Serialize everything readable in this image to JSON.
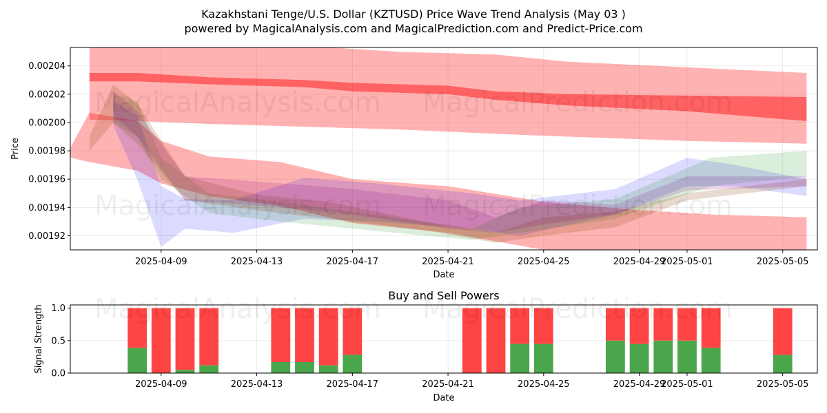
{
  "title_line1": "Kazakhstani Tenge/U.S. Dollar (KZTUSD) Price Wave Trend Analysis (May 03 )",
  "title_line2": "powered by MagicalAnalysis.com and MagicalPrediction.com and Predict-Price.com",
  "watermarks": [
    "MagicalAnalysis.com",
    "MagicalPrediction.com"
  ],
  "chart_data": [
    {
      "type": "area",
      "xlabel": "Date",
      "ylabel": "Price",
      "x_range": [
        "2025-04-05",
        "2025-05-06"
      ],
      "ylim": [
        0.00191,
        0.002053
      ],
      "x_ticks": [
        "2025-04-09",
        "2025-04-13",
        "2025-04-17",
        "2025-04-21",
        "2025-04-25",
        "2025-04-29",
        "2025-05-01",
        "2025-05-05"
      ],
      "y_ticks": [
        "0.00192",
        "0.00194",
        "0.00196",
        "0.00198",
        "0.00200",
        "0.00202",
        "0.00204"
      ],
      "grid": true,
      "colors": {
        "red": "#ff0000",
        "blue": "#0000ff",
        "green": "#008000",
        "brown": "#8b4513",
        "purple": "#800080"
      },
      "series": [
        {
          "color": "red",
          "kind": "band",
          "x": [
            "2025-04-06",
            "2025-04-08",
            "2025-04-11",
            "2025-04-15",
            "2025-04-19",
            "2025-04-23",
            "2025-04-26",
            "2025-05-01",
            "2025-05-06"
          ],
          "upper": [
            0.00206,
            0.002058,
            0.002055,
            0.002054,
            0.00205,
            0.002048,
            0.002043,
            0.002039,
            0.002035
          ],
          "lower": [
            0.002002,
            0.002001,
            0.001999,
            0.001997,
            0.001995,
            0.001992,
            0.00199,
            0.001987,
            0.001985
          ]
        },
        {
          "color": "red",
          "kind": "band",
          "x": [
            "2025-04-06",
            "2025-04-08",
            "2025-04-11",
            "2025-04-15",
            "2025-04-17",
            "2025-04-21",
            "2025-04-23",
            "2025-04-26",
            "2025-05-01",
            "2025-05-06"
          ],
          "upper": [
            0.002035,
            0.002035,
            0.002032,
            0.00203,
            0.002028,
            0.002026,
            0.002022,
            0.00202,
            0.002019,
            0.002018
          ],
          "lower": [
            0.002029,
            0.002029,
            0.002027,
            0.002025,
            0.002022,
            0.00202,
            0.002016,
            0.002012,
            0.002008,
            0.002001
          ]
        },
        {
          "color": "red",
          "kind": "band",
          "x": [
            "2025-04-05",
            "2025-04-06",
            "2025-04-08",
            "2025-04-09",
            "2025-04-11",
            "2025-04-14",
            "2025-04-17",
            "2025-04-21",
            "2025-04-25",
            "2025-04-29",
            "2025-05-02",
            "2025-05-06"
          ],
          "upper": [
            0.001976,
            0.002007,
            0.002001,
            0.001987,
            0.001976,
            0.001972,
            0.00196,
            0.001955,
            0.001944,
            0.001938,
            0.001935,
            0.001933
          ],
          "lower": [
            0.001976,
            0.001972,
            0.001966,
            0.001957,
            0.001948,
            0.001941,
            0.001929,
            0.001922,
            0.00191,
            0.001904,
            0.001902,
            0.0019
          ]
        },
        {
          "color": "blue",
          "kind": "band",
          "x": [
            "2025-04-07",
            "2025-04-08",
            "2025-04-09",
            "2025-04-10",
            "2025-04-12",
            "2025-04-15",
            "2025-04-18",
            "2025-04-22",
            "2025-04-24",
            "2025-04-28",
            "2025-05-01",
            "2025-05-03",
            "2025-05-06"
          ],
          "upper": [
            0.002015,
            0.002005,
            0.001955,
            0.001946,
            0.001945,
            0.001961,
            0.001957,
            0.00195,
            0.001945,
            0.001953,
            0.001975,
            0.00197,
            0.00196
          ],
          "lower": [
            0.001998,
            0.00196,
            0.001912,
            0.001925,
            0.001922,
            0.001932,
            0.00193,
            0.001925,
            0.00192,
            0.001935,
            0.001955,
            0.001955,
            0.001948
          ]
        },
        {
          "color": "green",
          "kind": "band",
          "x": [
            "2025-04-07",
            "2025-04-08",
            "2025-04-09",
            "2025-04-11",
            "2025-04-14",
            "2025-04-17",
            "2025-04-22",
            "2025-04-24",
            "2025-04-28",
            "2025-05-02",
            "2025-05-06"
          ],
          "upper": [
            0.00202,
            0.002015,
            0.001975,
            0.00195,
            0.001944,
            0.001937,
            0.001925,
            0.00194,
            0.001946,
            0.001975,
            0.00198
          ],
          "lower": [
            0.002,
            0.00199,
            0.00196,
            0.001936,
            0.00193,
            0.001925,
            0.001917,
            0.001922,
            0.001932,
            0.001955,
            0.001962
          ]
        },
        {
          "color": "brown",
          "kind": "band",
          "x": [
            "2025-04-06",
            "2025-04-07",
            "2025-04-08",
            "2025-04-10",
            "2025-04-13",
            "2025-04-16",
            "2025-04-20",
            "2025-04-23",
            "2025-04-25",
            "2025-04-28",
            "2025-05-01",
            "2025-05-06"
          ],
          "upper": [
            0.00199,
            0.002027,
            0.002013,
            0.001962,
            0.001949,
            0.001944,
            0.00193,
            0.001922,
            0.001933,
            0.001937,
            0.00195,
            0.00196
          ],
          "lower": [
            0.00198,
            0.002,
            0.001985,
            0.001945,
            0.001938,
            0.001932,
            0.001924,
            0.001915,
            0.00192,
            0.001926,
            0.001945,
            0.001955
          ]
        },
        {
          "color": "purple",
          "kind": "band",
          "x": [
            "2025-04-07",
            "2025-04-08",
            "2025-04-10",
            "2025-04-14",
            "2025-04-17",
            "2025-04-21",
            "2025-04-23",
            "2025-04-25",
            "2025-04-28",
            "2025-05-01",
            "2025-05-06"
          ],
          "upper": [
            0.002022,
            0.002008,
            0.001962,
            0.001957,
            0.001953,
            0.001945,
            0.001933,
            0.001945,
            0.001942,
            0.001962,
            0.001962
          ],
          "lower": [
            0.002005,
            0.00199,
            0.001945,
            0.00194,
            0.001935,
            0.001925,
            0.001922,
            0.001928,
            0.001935,
            0.001952,
            0.001955
          ]
        }
      ]
    },
    {
      "type": "bar",
      "title": "Buy and Sell Powers",
      "xlabel": "Date",
      "ylabel": "Signal Strength",
      "ylim": [
        0,
        1.05
      ],
      "y_ticks": [
        "0.0",
        "0.5",
        "1.0"
      ],
      "x_ticks": [
        "2025-04-09",
        "2025-04-13",
        "2025-04-17",
        "2025-04-21",
        "2025-04-25",
        "2025-04-29",
        "2025-05-01",
        "2025-05-05"
      ],
      "colors": {
        "buy": "#4aa64a",
        "sell": "#ff4444"
      },
      "dates": [
        "2025-04-08",
        "2025-04-09",
        "2025-04-10",
        "2025-04-11",
        "2025-04-14",
        "2025-04-15",
        "2025-04-16",
        "2025-04-17",
        "2025-04-22",
        "2025-04-23",
        "2025-04-24",
        "2025-04-25",
        "2025-04-28",
        "2025-04-29",
        "2025-04-30",
        "2025-05-01",
        "2025-05-02",
        "2025-05-05"
      ],
      "buy": [
        0.39,
        0.0,
        0.05,
        0.12,
        0.17,
        0.17,
        0.12,
        0.28,
        0.0,
        0.0,
        0.45,
        0.45,
        0.5,
        0.45,
        0.5,
        0.5,
        0.39,
        0.28
      ],
      "sell": [
        0.61,
        1.0,
        0.95,
        0.88,
        0.83,
        0.83,
        0.88,
        0.72,
        1.0,
        1.0,
        0.55,
        0.55,
        0.5,
        0.55,
        0.5,
        0.5,
        0.61,
        0.72
      ]
    }
  ]
}
